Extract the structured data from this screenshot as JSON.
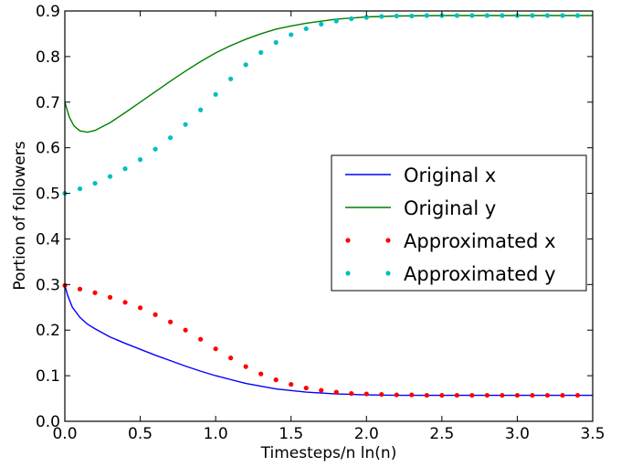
{
  "chart_data": {
    "type": "line",
    "title": "",
    "xlabel": "Timesteps/n ln(n)",
    "ylabel": "Portion of followers",
    "xlim": [
      0.0,
      3.5
    ],
    "ylim": [
      0.0,
      0.9
    ],
    "xticks": [
      "0.0",
      "0.5",
      "1.0",
      "1.5",
      "2.0",
      "2.5",
      "3.0",
      "3.5"
    ],
    "yticks": [
      "0.0",
      "0.1",
      "0.2",
      "0.3",
      "0.4",
      "0.5",
      "0.6",
      "0.7",
      "0.8",
      "0.9"
    ],
    "grid": false,
    "legend": "center-right",
    "series": [
      {
        "name": "Original x",
        "style": "line",
        "color": "#0000ff",
        "x": [
          0.0,
          0.02,
          0.05,
          0.1,
          0.15,
          0.2,
          0.3,
          0.4,
          0.5,
          0.6,
          0.7,
          0.8,
          0.9,
          1.0,
          1.2,
          1.4,
          1.6,
          1.8,
          2.0,
          2.2,
          2.5,
          3.0,
          3.5
        ],
        "values": [
          0.298,
          0.275,
          0.25,
          0.228,
          0.213,
          0.203,
          0.185,
          0.171,
          0.158,
          0.145,
          0.133,
          0.121,
          0.11,
          0.1,
          0.083,
          0.071,
          0.064,
          0.06,
          0.058,
          0.057,
          0.057,
          0.057,
          0.057
        ]
      },
      {
        "name": "Original y",
        "style": "line",
        "color": "#008000",
        "x": [
          0.0,
          0.03,
          0.06,
          0.1,
          0.15,
          0.2,
          0.3,
          0.4,
          0.5,
          0.6,
          0.7,
          0.8,
          0.9,
          1.0,
          1.1,
          1.2,
          1.3,
          1.4,
          1.5,
          1.6,
          1.8,
          2.0,
          2.2,
          2.5,
          3.0,
          3.5
        ],
        "values": [
          0.7,
          0.667,
          0.648,
          0.637,
          0.634,
          0.638,
          0.655,
          0.677,
          0.7,
          0.723,
          0.746,
          0.768,
          0.789,
          0.808,
          0.824,
          0.838,
          0.85,
          0.86,
          0.867,
          0.873,
          0.882,
          0.887,
          0.889,
          0.89,
          0.89,
          0.89
        ]
      },
      {
        "name": "Approximated x",
        "style": "dots",
        "color": "#ff0000",
        "x": [
          0.0,
          0.1,
          0.2,
          0.3,
          0.4,
          0.5,
          0.6,
          0.7,
          0.8,
          0.9,
          1.0,
          1.1,
          1.2,
          1.3,
          1.4,
          1.5,
          1.6,
          1.7,
          1.8,
          1.9,
          2.0,
          2.1,
          2.2,
          2.3,
          2.4,
          2.5,
          2.6,
          2.7,
          2.8,
          2.9,
          3.0,
          3.1,
          3.2,
          3.3,
          3.4
        ],
        "values": [
          0.298,
          0.29,
          0.282,
          0.272,
          0.261,
          0.249,
          0.234,
          0.218,
          0.2,
          0.18,
          0.159,
          0.139,
          0.12,
          0.104,
          0.091,
          0.081,
          0.073,
          0.068,
          0.064,
          0.061,
          0.06,
          0.059,
          0.058,
          0.058,
          0.057,
          0.057,
          0.057,
          0.057,
          0.057,
          0.057,
          0.057,
          0.057,
          0.057,
          0.057,
          0.057
        ]
      },
      {
        "name": "Approximated y",
        "style": "dots",
        "color": "#00bfbf",
        "x": [
          0.0,
          0.1,
          0.2,
          0.3,
          0.4,
          0.5,
          0.6,
          0.7,
          0.8,
          0.9,
          1.0,
          1.1,
          1.2,
          1.3,
          1.4,
          1.5,
          1.6,
          1.7,
          1.8,
          1.9,
          2.0,
          2.1,
          2.2,
          2.3,
          2.4,
          2.5,
          2.6,
          2.7,
          2.8,
          2.9,
          3.0,
          3.1,
          3.2,
          3.3,
          3.4
        ],
        "values": [
          0.5,
          0.51,
          0.522,
          0.537,
          0.554,
          0.574,
          0.597,
          0.622,
          0.651,
          0.683,
          0.717,
          0.751,
          0.782,
          0.809,
          0.831,
          0.848,
          0.861,
          0.871,
          0.878,
          0.883,
          0.886,
          0.888,
          0.889,
          0.889,
          0.89,
          0.89,
          0.89,
          0.89,
          0.89,
          0.89,
          0.89,
          0.89,
          0.89,
          0.89,
          0.89
        ]
      }
    ]
  }
}
